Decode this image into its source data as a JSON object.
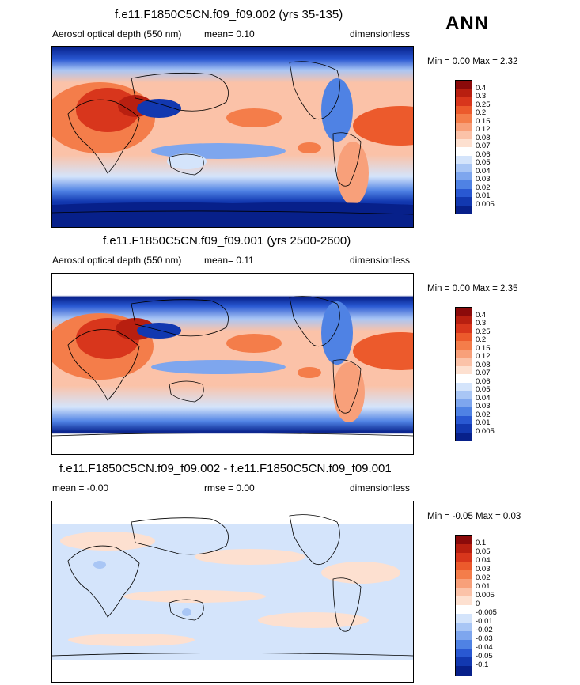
{
  "season": "ANN",
  "panels": [
    {
      "title": "f.e11.F1850C5CN.f09_f09.002 (yrs 35-135)",
      "left_label": "Aerosol optical depth (550 nm)",
      "stat1": "mean=  0.10",
      "stat2": "",
      "units": "dimensionless",
      "minmax": "Min =  0.00 Max =  2.32"
    },
    {
      "title": "f.e11.F1850C5CN.f09_f09.001 (yrs 2500-2600)",
      "left_label": "Aerosol optical depth (550 nm)",
      "stat1": "mean=  0.11",
      "stat2": "",
      "units": "dimensionless",
      "minmax": "Min =  0.00 Max =  2.35"
    },
    {
      "title": "f.e11.F1850C5CN.f09_f09.002 - f.e11.F1850C5CN.f09_f09.001",
      "left_label": "mean =  -0.00",
      "stat1": "rmse =  0.00",
      "stat2": "",
      "units": "dimensionless",
      "minmax": "Min =  -0.05 Max =  0.03"
    }
  ],
  "colorbar_abs": {
    "labels": [
      "0.4",
      "0.3",
      "0.25",
      "0.2",
      "0.15",
      "0.12",
      "0.08",
      "0.07",
      "0.06",
      "0.05",
      "0.04",
      "0.03",
      "0.02",
      "0.01",
      "0.005"
    ],
    "colors": [
      "#8b0a0a",
      "#b81f10",
      "#d8361c",
      "#ec5a2c",
      "#f47d4a",
      "#f8a07a",
      "#fbc2a8",
      "#fde0d0",
      "#ffffff",
      "#d4e4fb",
      "#a9c6f5",
      "#7ea6ee",
      "#4f82e4",
      "#2958d2",
      "#1238b0",
      "#07208a"
    ]
  },
  "colorbar_diff": {
    "labels": [
      "0.1",
      "0.05",
      "0.04",
      "0.03",
      "0.02",
      "0.01",
      "0.005",
      "0",
      "-0.005",
      "-0.01",
      "-0.02",
      "-0.03",
      "-0.04",
      "-0.05",
      "-0.1"
    ],
    "colors": [
      "#8b0a0a",
      "#b81f10",
      "#d8361c",
      "#ec5a2c",
      "#f47d4a",
      "#f8a07a",
      "#fbc2a8",
      "#fde0d0",
      "#ffffff",
      "#d4e4fb",
      "#a9c6f5",
      "#7ea6ee",
      "#4f82e4",
      "#2958d2",
      "#1238b0",
      "#07208a"
    ]
  }
}
